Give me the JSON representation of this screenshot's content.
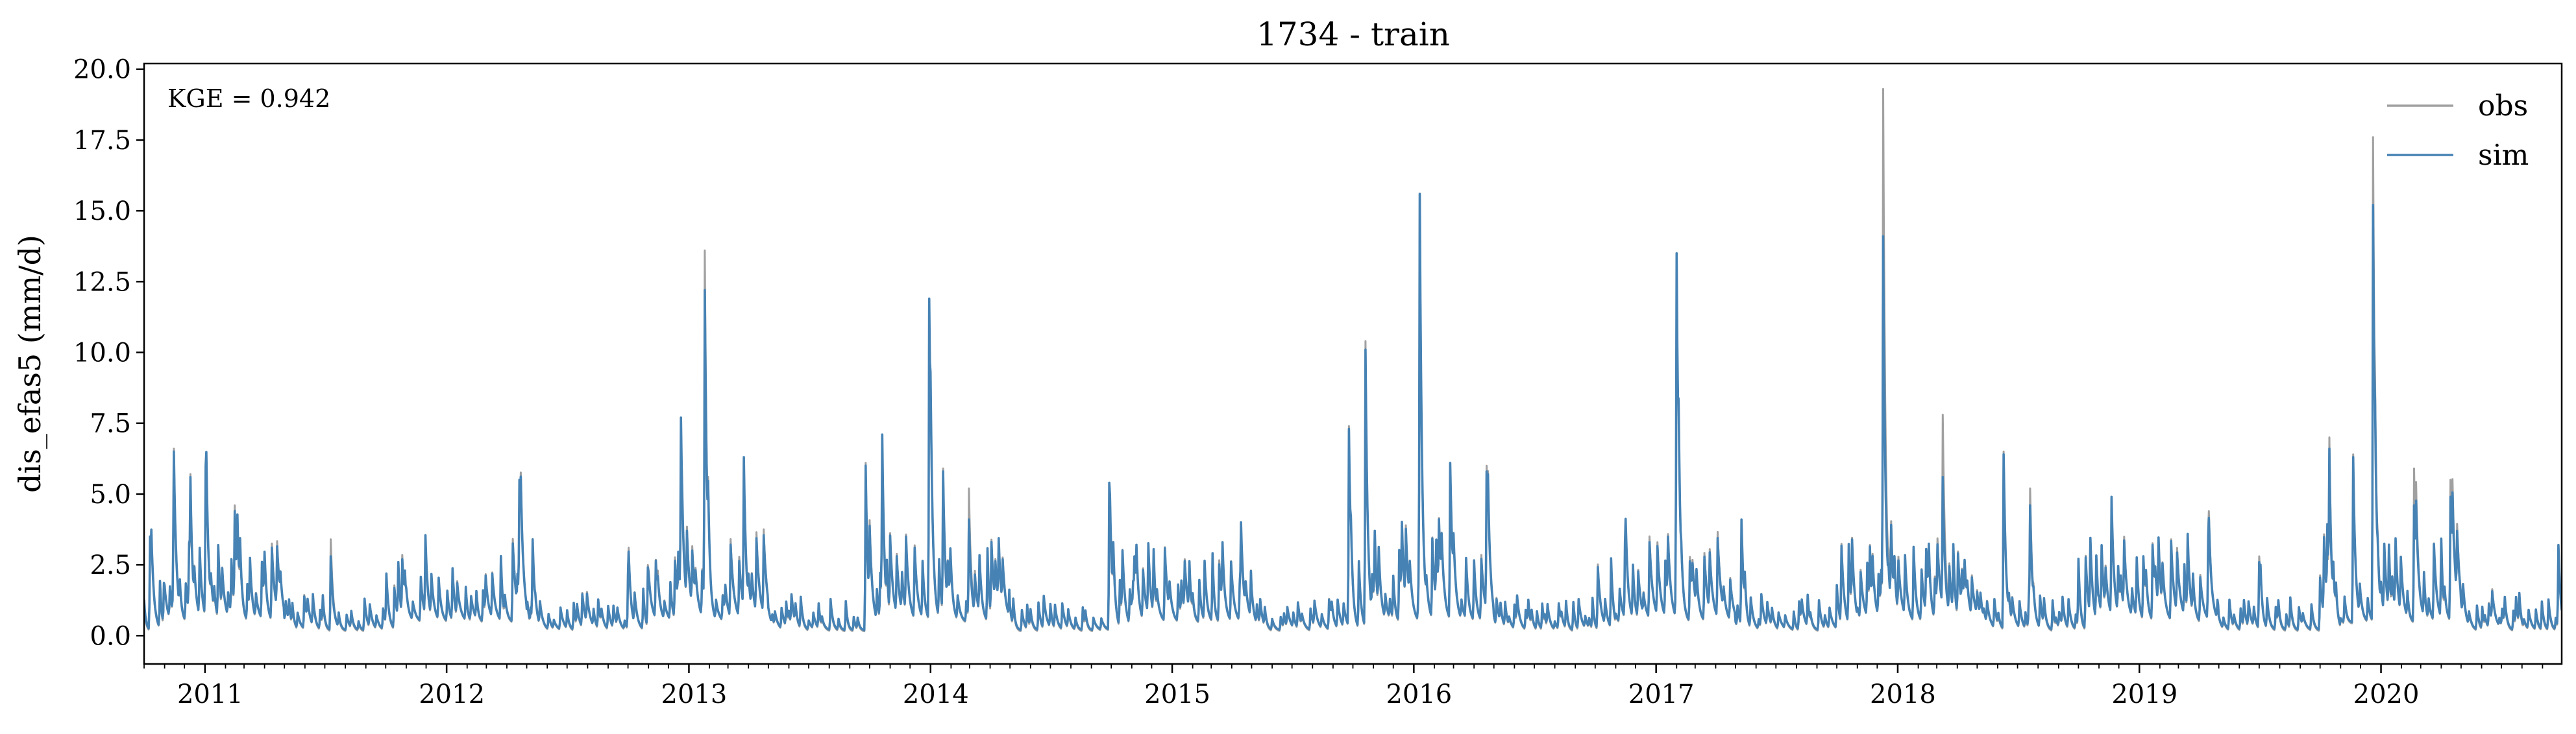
{
  "chart_data": {
    "type": "line",
    "title": "1734 - train",
    "xlabel": "",
    "ylabel": "dis_efas5 (mm/d)",
    "annotation": "KGE = 0.942",
    "xlim": [
      "2010-10-01",
      "2020-09-30"
    ],
    "ylim": [
      -1.0,
      20.2
    ],
    "x_tick_labels": [
      "2011",
      "2012",
      "2013",
      "2014",
      "2015",
      "2016",
      "2017",
      "2018",
      "2019",
      "2020"
    ],
    "y_tick_labels": [
      "0.0",
      "2.5",
      "5.0",
      "7.5",
      "10.0",
      "12.5",
      "15.0",
      "17.5",
      "20.0"
    ],
    "y_ticks": [
      0,
      2.5,
      5,
      7.5,
      10,
      12.5,
      15,
      17.5,
      20
    ],
    "grid": false,
    "legend_position": "top-right",
    "series": [
      {
        "name": "obs",
        "color": "#a0a0a0",
        "peaks": [
          [
            "2010-10-10",
            3.5
          ],
          [
            "2010-11-15",
            6.6
          ],
          [
            "2010-12-10",
            5.7
          ],
          [
            "2011-01-02",
            6.0
          ],
          [
            "2011-02-15",
            4.6
          ],
          [
            "2011-03-10",
            2.2
          ],
          [
            "2011-07-10",
            3.4
          ],
          [
            "2011-10-20",
            2.6
          ],
          [
            "2012-04-20",
            5.5
          ],
          [
            "2012-05-10",
            3.4
          ],
          [
            "2012-10-01",
            2.4
          ],
          [
            "2012-11-15",
            2.3
          ],
          [
            "2012-12-20",
            7.5
          ],
          [
            "2013-01-25",
            13.6
          ],
          [
            "2013-03-25",
            6.3
          ],
          [
            "2013-09-25",
            6.1
          ],
          [
            "2013-10-20",
            7.0
          ],
          [
            "2013-12-30",
            11.8
          ],
          [
            "2014-01-20",
            5.9
          ],
          [
            "2014-02-28",
            5.2
          ],
          [
            "2014-09-28",
            5.4
          ],
          [
            "2014-11-05",
            2.8
          ],
          [
            "2015-04-15",
            4.0
          ],
          [
            "2015-09-25",
            7.4
          ],
          [
            "2015-10-20",
            10.4
          ],
          [
            "2016-01-10",
            15.6
          ],
          [
            "2016-02-25",
            6.1
          ],
          [
            "2016-04-20",
            6.0
          ],
          [
            "2016-11-15",
            3.3
          ],
          [
            "2017-02-01",
            13.5
          ],
          [
            "2017-05-10",
            4.1
          ],
          [
            "2017-11-20",
            3.2
          ],
          [
            "2017-12-10",
            19.3
          ],
          [
            "2018-03-10",
            7.8
          ],
          [
            "2018-06-10",
            6.5
          ],
          [
            "2018-07-20",
            5.2
          ],
          [
            "2018-11-20",
            4.9
          ],
          [
            "2019-04-15",
            3.7
          ],
          [
            "2019-07-01",
            2.8
          ],
          [
            "2019-10-15",
            7.0
          ],
          [
            "2019-11-20",
            6.4
          ],
          [
            "2019-12-20",
            17.6
          ],
          [
            "2020-02-20",
            5.9
          ],
          [
            "2020-04-15",
            5.5
          ],
          [
            "2020-09-25",
            3.2
          ]
        ]
      },
      {
        "name": "sim",
        "color": "#4682b4",
        "peaks": [
          [
            "2010-10-10",
            3.5
          ],
          [
            "2010-11-15",
            6.5
          ],
          [
            "2010-12-10",
            5.6
          ],
          [
            "2011-01-02",
            6.0
          ],
          [
            "2011-02-15",
            4.4
          ],
          [
            "2011-03-10",
            2.1
          ],
          [
            "2011-07-10",
            2.8
          ],
          [
            "2011-10-20",
            2.6
          ],
          [
            "2012-04-20",
            5.5
          ],
          [
            "2012-05-10",
            3.4
          ],
          [
            "2012-10-01",
            2.2
          ],
          [
            "2012-11-15",
            2.1
          ],
          [
            "2012-12-20",
            7.7
          ],
          [
            "2013-01-25",
            12.2
          ],
          [
            "2013-03-25",
            6.3
          ],
          [
            "2013-09-25",
            6.0
          ],
          [
            "2013-10-20",
            7.1
          ],
          [
            "2013-12-30",
            11.9
          ],
          [
            "2014-01-20",
            5.8
          ],
          [
            "2014-02-28",
            4.1
          ],
          [
            "2014-09-28",
            5.4
          ],
          [
            "2014-11-05",
            2.8
          ],
          [
            "2015-04-15",
            4.0
          ],
          [
            "2015-09-25",
            7.3
          ],
          [
            "2015-10-20",
            10.1
          ],
          [
            "2016-01-10",
            15.6
          ],
          [
            "2016-02-25",
            6.1
          ],
          [
            "2016-04-20",
            5.8
          ],
          [
            "2016-11-15",
            3.3
          ],
          [
            "2017-02-01",
            13.5
          ],
          [
            "2017-05-10",
            4.1
          ],
          [
            "2017-11-20",
            3.0
          ],
          [
            "2017-12-10",
            14.1
          ],
          [
            "2018-03-10",
            5.6
          ],
          [
            "2018-06-10",
            6.4
          ],
          [
            "2018-07-20",
            4.6
          ],
          [
            "2018-11-20",
            4.9
          ],
          [
            "2019-04-15",
            3.5
          ],
          [
            "2019-07-01",
            2.6
          ],
          [
            "2019-10-15",
            6.6
          ],
          [
            "2019-11-20",
            6.3
          ],
          [
            "2019-12-20",
            15.2
          ],
          [
            "2020-02-20",
            4.6
          ],
          [
            "2020-04-15",
            4.9
          ],
          [
            "2020-09-25",
            3.2
          ]
        ]
      }
    ]
  }
}
